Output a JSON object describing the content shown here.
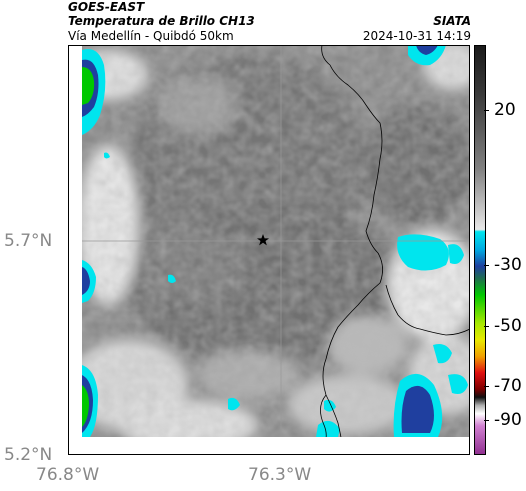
{
  "header": {
    "satellite": "GOES-EAST",
    "product": "Temperatura de Brillo CH13",
    "region": "Vía Medellín - Quibdó 50km",
    "organization": "SIATA",
    "timestamp": "2024-10-31 14:19"
  },
  "axes": {
    "y_labels": [
      "5.7°N",
      "5.2°N"
    ],
    "x_labels": [
      "76.8°W",
      "76.3°W"
    ]
  },
  "colorbar": {
    "labels": [
      "20",
      "-30",
      "-50",
      "-70",
      "-90"
    ],
    "range": [
      -95,
      40
    ],
    "colors": {
      "warm": "#ffffff",
      "mid": "#808080",
      "cold_gray": "#2a2a2a",
      "cyan": "#00e5ee",
      "blue": "#1f3f9f",
      "green": "#00c800",
      "yellow": "#e8e800",
      "red": "#e01010",
      "magenta": "#b040b0"
    }
  },
  "map": {
    "marker": "star-marker",
    "colors": {
      "border": "#000000",
      "grid": "#999999"
    }
  }
}
